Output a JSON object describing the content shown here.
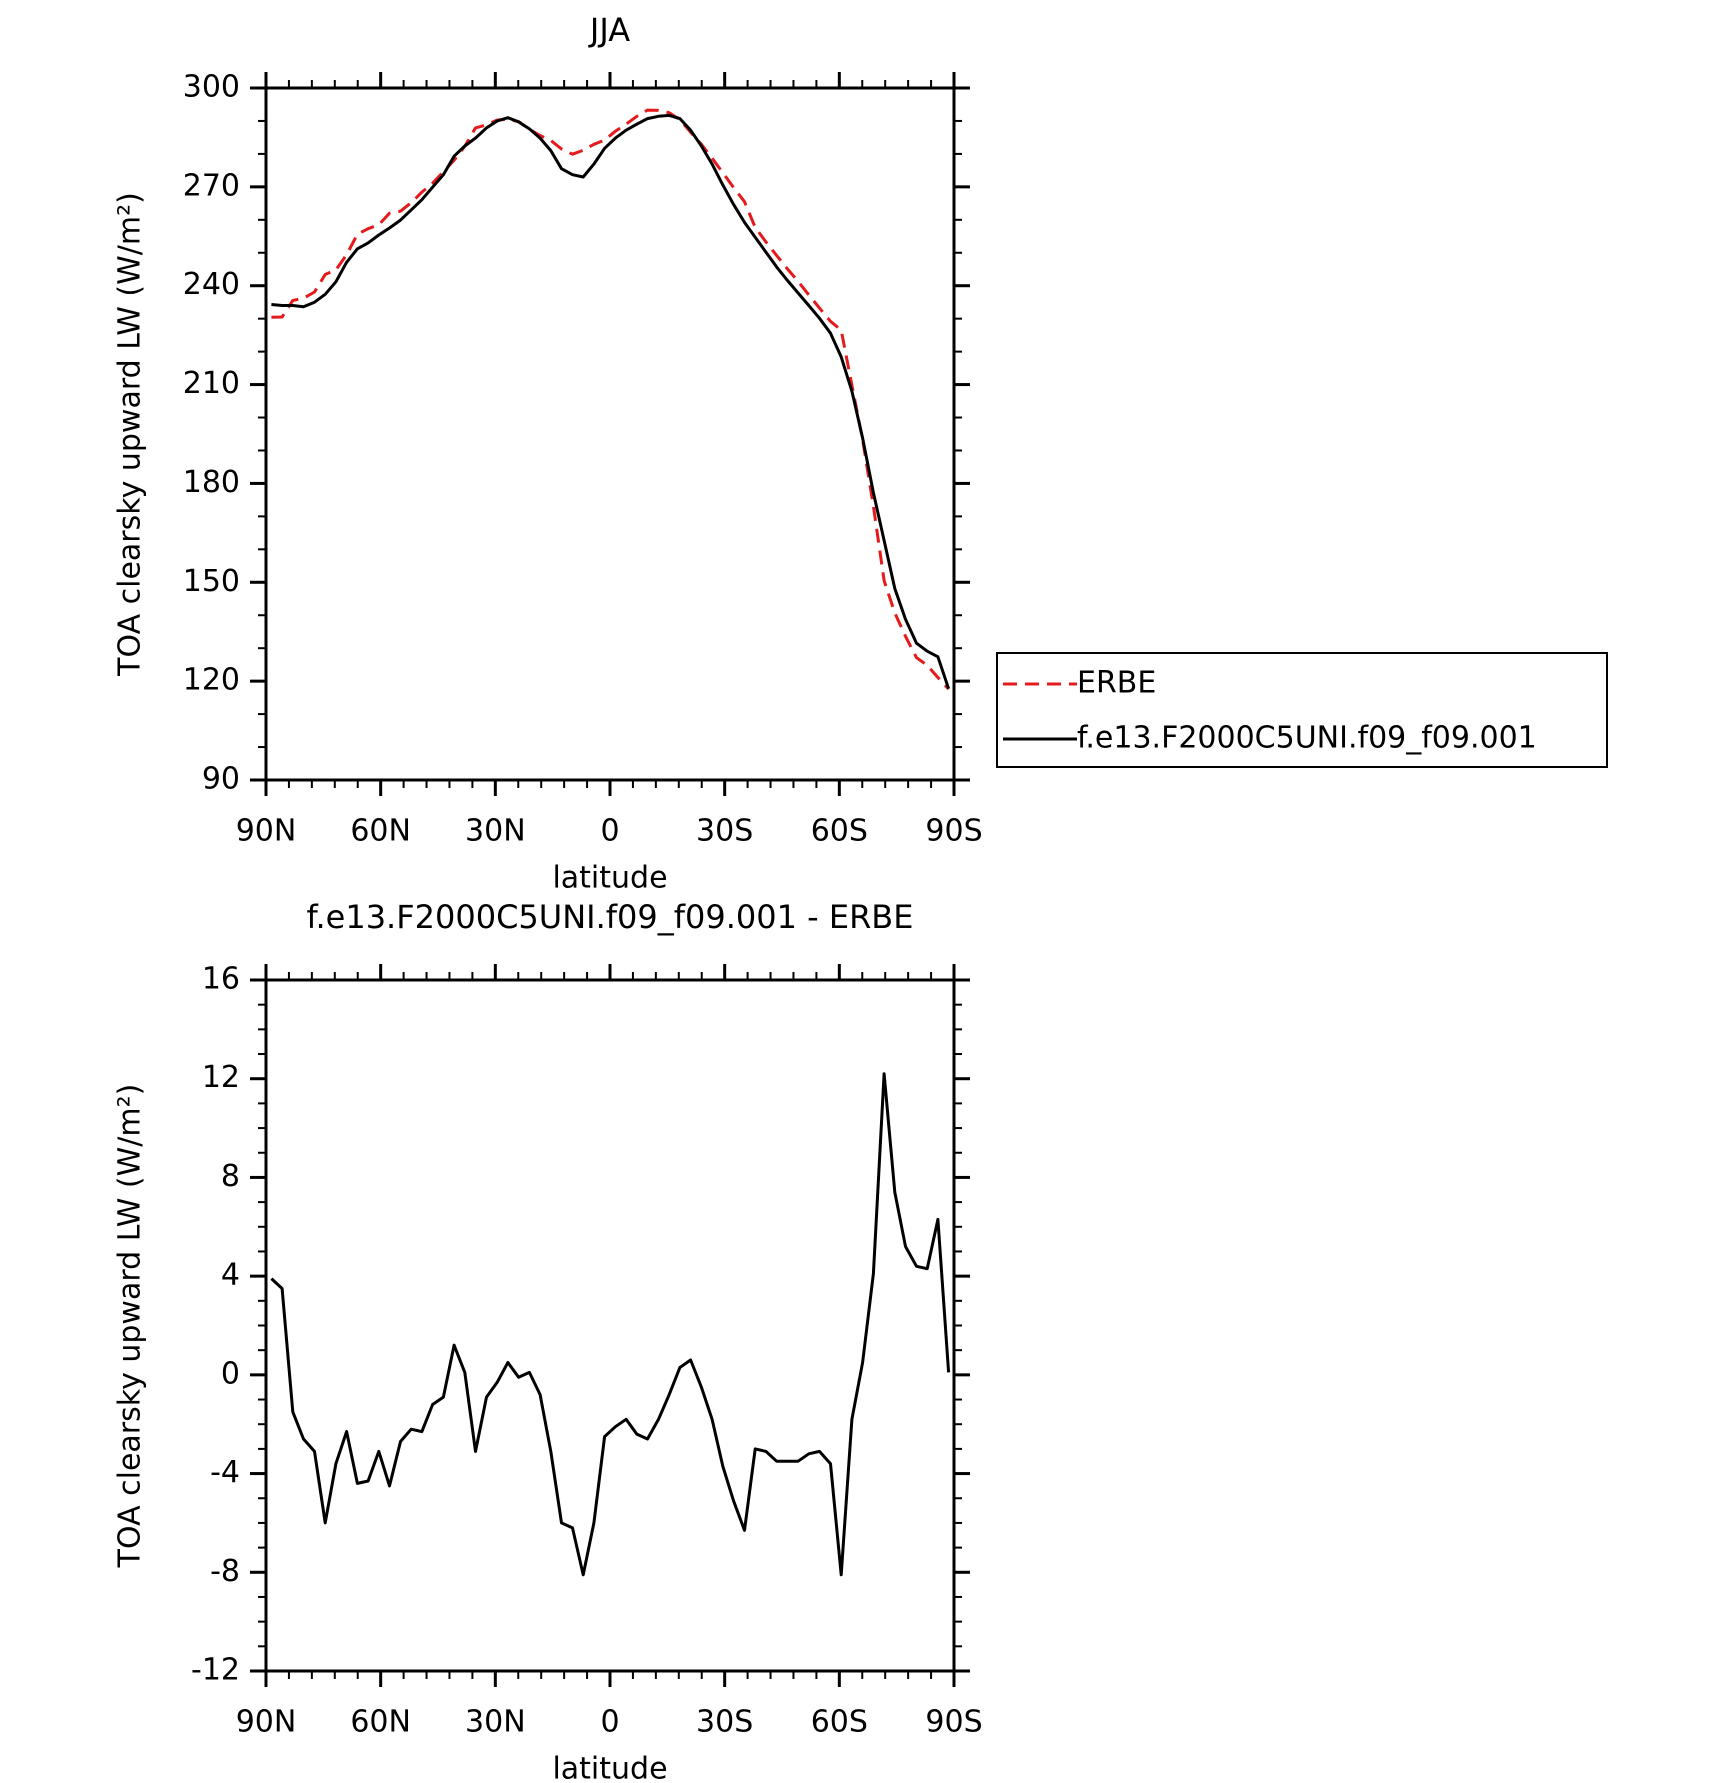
{
  "chart_data": [
    {
      "type": "line",
      "title": "JJA",
      "xlabel": "latitude",
      "ylabel": "TOA clearsky upward LW (W/m²)",
      "x": [
        88.6,
        85.8,
        83.0,
        80.2,
        77.3,
        74.5,
        71.7,
        68.9,
        66.1,
        63.3,
        60.5,
        57.7,
        54.8,
        52.0,
        49.2,
        46.4,
        43.6,
        40.8,
        38.0,
        35.2,
        32.3,
        29.5,
        26.7,
        23.9,
        21.1,
        18.3,
        15.5,
        12.7,
        9.8,
        7.0,
        4.2,
        1.4,
        -1.4,
        -4.2,
        -7.0,
        -9.8,
        -12.7,
        -15.5,
        -18.3,
        -21.1,
        -23.9,
        -26.7,
        -29.5,
        -32.3,
        -35.2,
        -38.0,
        -40.8,
        -43.6,
        -46.4,
        -49.2,
        -52.0,
        -54.8,
        -57.7,
        -60.5,
        -63.3,
        -66.1,
        -68.9,
        -71.7,
        -74.5,
        -77.3,
        -80.2,
        -83.0,
        -85.8,
        -88.6
      ],
      "series": [
        {
          "name": "ERBE",
          "color": "#e41a1c",
          "linestyle": "dashed",
          "values": [
            230.4,
            230.5,
            235.5,
            236.2,
            238.1,
            243.4,
            244.8,
            249.4,
            255.6,
            257.3,
            258.5,
            262.0,
            262.6,
            265.2,
            268.4,
            271.1,
            274.6,
            278.1,
            282.3,
            287.9,
            288.8,
            290.3,
            290.5,
            289.8,
            287.5,
            285.6,
            284.1,
            281.5,
            279.9,
            281.1,
            282.9,
            284.2,
            286.9,
            289.0,
            291.4,
            293.3,
            293.2,
            292.5,
            290.4,
            286.6,
            282.9,
            278.7,
            274.3,
            269.8,
            265.5,
            257.7,
            253.3,
            249.2,
            245.1,
            241.3,
            237.2,
            233.2,
            229.2,
            226.5,
            209.8,
            193.3,
            173.1,
            150.5,
            140.7,
            133.6,
            127.1,
            124.8,
            121.1,
            117.6
          ]
        },
        {
          "name": "f.e13.F2000C5UNI.f09_f09.001",
          "color": "#000000",
          "linestyle": "solid",
          "values": [
            234.3,
            234.0,
            234.0,
            233.6,
            235.0,
            237.4,
            241.2,
            247.1,
            251.2,
            253.0,
            255.4,
            257.5,
            259.9,
            263.0,
            266.1,
            269.9,
            273.7,
            279.3,
            282.4,
            284.8,
            287.9,
            290.0,
            291.0,
            289.7,
            287.6,
            284.8,
            281.0,
            275.5,
            273.7,
            273.0,
            276.9,
            281.7,
            284.8,
            287.2,
            289.0,
            290.7,
            291.4,
            291.7,
            290.7,
            287.2,
            282.4,
            276.9,
            270.6,
            264.7,
            259.2,
            254.7,
            250.2,
            245.7,
            241.6,
            237.8,
            234.0,
            230.1,
            225.6,
            218.4,
            208.0,
            193.8,
            177.2,
            162.7,
            148.1,
            138.8,
            131.5,
            129.1,
            127.4,
            117.7
          ]
        }
      ],
      "xlim": [
        90,
        -90
      ],
      "xticks": [
        {
          "value": 90,
          "label": "90N"
        },
        {
          "value": 60,
          "label": "60N"
        },
        {
          "value": 30,
          "label": "30N"
        },
        0,
        {
          "value": -30,
          "label": "30S"
        },
        {
          "value": -60,
          "label": "60S"
        },
        {
          "value": -90,
          "label": "90S"
        }
      ],
      "xminorticks": [
        84,
        78,
        72,
        66,
        54,
        48,
        42,
        36,
        24,
        18,
        12,
        6,
        -6,
        -12,
        -18,
        -24,
        -36,
        -42,
        -48,
        -54,
        -66,
        -72,
        -78,
        -84
      ],
      "ylim": [
        90,
        300
      ],
      "yticks": [
        90,
        120,
        150,
        180,
        210,
        240,
        270,
        300
      ],
      "yminorticks": [
        100,
        110,
        130,
        140,
        160,
        170,
        190,
        200,
        220,
        230,
        250,
        260,
        280,
        290
      ],
      "legend": "right"
    },
    {
      "type": "line",
      "title": "f.e13.F2000C5UNI.f09_f09.001 - ERBE",
      "xlabel": "latitude",
      "ylabel": "TOA clearsky upward LW (W/m²)",
      "x": [
        88.6,
        85.8,
        83.0,
        80.2,
        77.3,
        74.5,
        71.7,
        68.9,
        66.1,
        63.3,
        60.5,
        57.7,
        54.8,
        52.0,
        49.2,
        46.4,
        43.6,
        40.8,
        38.0,
        35.2,
        32.3,
        29.5,
        26.7,
        23.9,
        21.1,
        18.3,
        15.5,
        12.7,
        9.8,
        7.0,
        4.2,
        1.4,
        -1.4,
        -4.2,
        -7.0,
        -9.8,
        -12.7,
        -15.5,
        -18.3,
        -21.1,
        -23.9,
        -26.7,
        -29.5,
        -32.3,
        -35.2,
        -38.0,
        -40.8,
        -43.6,
        -46.4,
        -49.2,
        -52.0,
        -54.8,
        -57.7,
        -60.5,
        -63.3,
        -66.1,
        -68.9,
        -71.7,
        -74.5,
        -77.3,
        -80.2,
        -83.0,
        -85.8,
        -88.6
      ],
      "series": [
        {
          "color": "#000000",
          "linestyle": "solid",
          "values": [
            3.9,
            3.5,
            -1.5,
            -2.6,
            -3.1,
            -6.0,
            -3.6,
            -2.3,
            -4.4,
            -4.3,
            -3.1,
            -4.5,
            -2.7,
            -2.2,
            -2.3,
            -1.2,
            -0.9,
            1.2,
            0.1,
            -3.1,
            -0.9,
            -0.3,
            0.5,
            -0.1,
            0.1,
            -0.8,
            -3.1,
            -6.0,
            -6.2,
            -8.1,
            -6.0,
            -2.5,
            -2.1,
            -1.8,
            -2.4,
            -2.6,
            -1.8,
            -0.8,
            0.3,
            0.6,
            -0.5,
            -1.8,
            -3.7,
            -5.1,
            -6.3,
            -3.0,
            -3.1,
            -3.5,
            -3.5,
            -3.5,
            -3.2,
            -3.1,
            -3.6,
            -8.1,
            -1.8,
            0.5,
            4.1,
            12.2,
            7.4,
            5.2,
            4.4,
            4.3,
            6.3,
            0.1
          ]
        }
      ],
      "xlim": [
        90,
        -90
      ],
      "xticks": [
        {
          "value": 90,
          "label": "90N"
        },
        {
          "value": 60,
          "label": "60N"
        },
        {
          "value": 30,
          "label": "30N"
        },
        0,
        {
          "value": -30,
          "label": "30S"
        },
        {
          "value": -60,
          "label": "60S"
        },
        {
          "value": -90,
          "label": "90S"
        }
      ],
      "xminorticks": [
        84,
        78,
        72,
        66,
        54,
        48,
        42,
        36,
        24,
        18,
        12,
        6,
        -6,
        -12,
        -18,
        -24,
        -36,
        -42,
        -48,
        -54,
        -66,
        -72,
        -78,
        -84
      ],
      "ylim": [
        -12,
        16
      ],
      "yticks": [
        -12,
        -8,
        -4,
        0,
        4,
        8,
        12,
        16
      ],
      "yminorticks": [
        -11,
        -10,
        -9,
        -7,
        -6,
        -5,
        -3,
        -2,
        -1,
        1,
        2,
        3,
        5,
        6,
        7,
        9,
        10,
        11,
        13,
        14,
        15
      ]
    }
  ]
}
